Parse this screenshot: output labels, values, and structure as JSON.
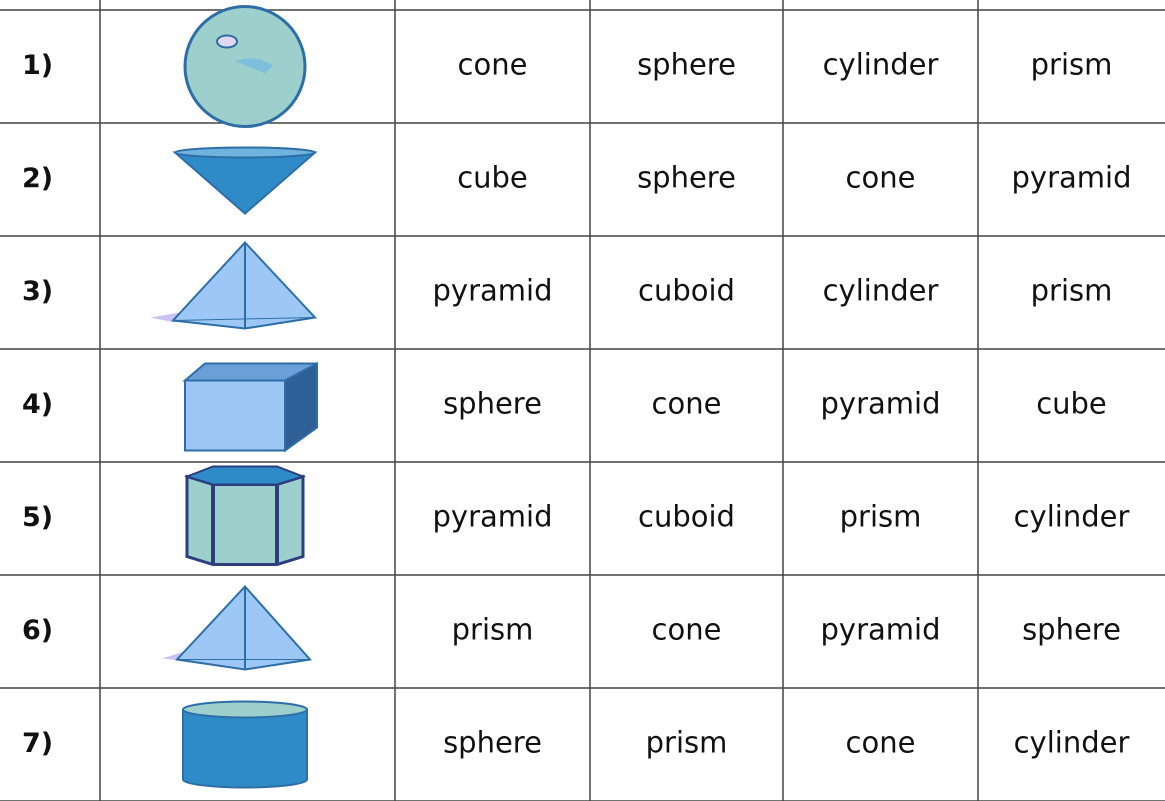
{
  "table": {
    "rows": [
      {
        "number": "1)",
        "options": [
          "cone",
          "sphere",
          "cylinder",
          "prism"
        ]
      },
      {
        "number": "2)",
        "options": [
          "cube",
          "sphere",
          "cone",
          "pyramid"
        ]
      },
      {
        "number": "3)",
        "options": [
          "pyramid",
          "cuboid",
          "cylinder",
          "prism"
        ]
      },
      {
        "number": "4)",
        "options": [
          "sphere",
          "cone",
          "pyramid",
          "cube"
        ]
      },
      {
        "number": "5)",
        "options": [
          "pyramid",
          "cuboid",
          "prism",
          "cylinder"
        ]
      },
      {
        "number": "6)",
        "options": [
          "prism",
          "cone",
          "pyramid",
          "sphere"
        ]
      },
      {
        "number": "7)",
        "options": [
          "sphere",
          "prism",
          "cone",
          "cylinder"
        ]
      }
    ]
  }
}
